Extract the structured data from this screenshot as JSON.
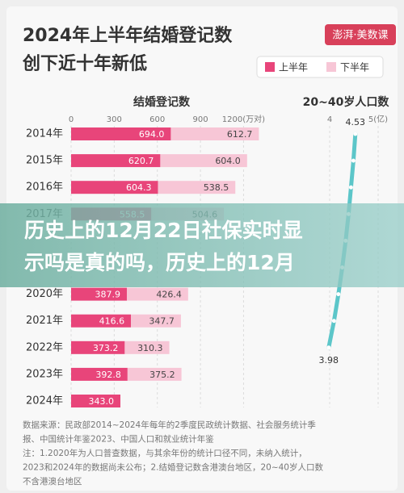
{
  "header": {
    "title_lines": [
      "2024年上半年结婚登记数",
      "创下近十年新低"
    ],
    "logo": "澎湃·美数课"
  },
  "chart_data": [
    {
      "type": "stacked-bar-horizontal",
      "subtitle": "结婚登记数",
      "categories": [
        "2014年",
        "2015年",
        "2016年",
        "2017年",
        null,
        null,
        "2020年",
        "2021年",
        "2022年",
        "2023年",
        "2024年"
      ],
      "series": [
        {
          "name": "上半年",
          "color": "#e8457a",
          "values": [
            694.0,
            620.7,
            604.3,
            558.5,
            null,
            null,
            387.9,
            416.6,
            373.2,
            392.8,
            343.0
          ],
          "value_labels": [
            "694.0",
            "620.7",
            "604.3",
            "558.5",
            null,
            null,
            "387.9",
            "416.6",
            "373.2",
            "392.8",
            "343.0"
          ]
        },
        {
          "name": "下半年",
          "color": "#f7c6d6",
          "values": [
            612.7,
            604.0,
            538.5,
            504.6,
            null,
            null,
            426.4,
            347.7,
            310.3,
            375.2,
            null
          ],
          "value_labels": [
            "612.7",
            "604.0",
            "538.5",
            "504.6",
            null,
            null,
            "426.4",
            "347.7",
            "310.3",
            "375.2",
            null
          ]
        }
      ],
      "xlim": [
        0,
        1400
      ],
      "xticks": [
        0,
        300,
        600,
        900,
        {
          "value": 1200,
          "label": "1200(万对)"
        }
      ],
      "legend": "top-right"
    },
    {
      "type": "line-horizontal",
      "subtitle": "20~40岁人口数",
      "color": "#5cc6c9",
      "values": [
        4.53,
        4.49,
        4.44,
        4.39,
        4.33,
        4.26,
        4.18,
        4.09,
        3.98,
        null,
        null
      ],
      "value_labels": [
        "4.53",
        null,
        null,
        null,
        null,
        null,
        null,
        null,
        "3.98",
        null,
        null
      ],
      "xlim": [
        3.2,
        5.3
      ],
      "xticks": [
        4,
        {
          "value": 5,
          "label": "5(亿)"
        }
      ]
    }
  ],
  "overlay": {
    "lines": [
      "历史上的12月22日社保实时显",
      "示吗是真的吗，历史上的12月"
    ]
  },
  "notes": [
    "数据来源：民政部2014~2024年每年的2季度民政统计数据、社会服务统计季",
    "报、中国统计年鉴2023、中国人口和就业统计年鉴",
    "注：1.2020年为人口普查数据，与其余年份的统计口径不同，未纳入统计，",
    "2023和2024年的数据尚未公布；2.结婚登记数含港澳台地区，20~40岁人口数",
    "不含港澳台地区"
  ]
}
